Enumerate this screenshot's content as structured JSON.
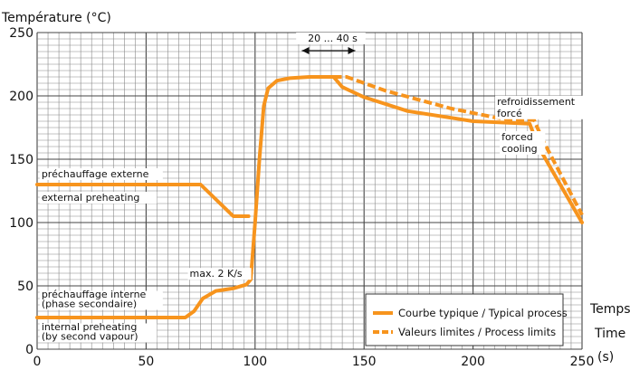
{
  "chart_data": {
    "type": "line",
    "ylabel": "Température (°C)",
    "xlabel_lines": [
      "Temps",
      "Time",
      "(s)"
    ],
    "xlim": [
      0,
      250
    ],
    "ylim": [
      0,
      250
    ],
    "x_ticks": [
      "0",
      "50",
      "100",
      "150",
      "200",
      "250"
    ],
    "y_ticks": [
      "0",
      "50",
      "100",
      "150",
      "200",
      "250"
    ],
    "grid": true,
    "legend_position": "bottom-right",
    "accent_color": "#f7941d",
    "series": [
      {
        "name": "Courbe typique / Typical process",
        "style": "solid",
        "points": [
          [
            0,
            25
          ],
          [
            34,
            25
          ],
          [
            68,
            25
          ],
          [
            72,
            30
          ],
          [
            76,
            40
          ],
          [
            82,
            46
          ],
          [
            90,
            48
          ],
          [
            96,
            51
          ],
          [
            98,
            55
          ],
          [
            100,
            100
          ],
          [
            102,
            150
          ],
          [
            104,
            192
          ],
          [
            106,
            206
          ],
          [
            110,
            212
          ],
          [
            116,
            214
          ],
          [
            125,
            215
          ],
          [
            136,
            215
          ],
          [
            140,
            207
          ],
          [
            150,
            199
          ],
          [
            170,
            188
          ],
          [
            200,
            180
          ],
          [
            226,
            178
          ],
          [
            230,
            160
          ],
          [
            250,
            100
          ]
        ]
      },
      {
        "name": "Valeurs limites / Process limits",
        "style": "dashed",
        "points": [
          [
            136,
            215
          ],
          [
            142,
            215
          ],
          [
            160,
            204
          ],
          [
            190,
            190
          ],
          [
            210,
            183
          ],
          [
            218,
            181
          ],
          [
            228,
            181
          ],
          [
            232,
            165
          ],
          [
            250,
            106
          ]
        ]
      },
      {
        "name": "",
        "style": "solid",
        "points": [
          [
            0,
            130
          ],
          [
            75,
            130
          ],
          [
            90,
            105
          ],
          [
            97,
            105
          ]
        ]
      }
    ],
    "annotations": [
      {
        "lines": [
          "préchauffage externe",
          "external preheating"
        ],
        "x": 2,
        "y": 130
      },
      {
        "lines": [
          "préchauffage interne",
          "(phase secondaire)",
          "internal preheating",
          "(by second vapour)"
        ],
        "x": 2,
        "y": 25
      },
      {
        "lines": [
          "max. 2 K/s"
        ],
        "x": 70,
        "y": 57
      },
      {
        "lines": [
          "20 ... 40 s"
        ],
        "x": 136,
        "y": 240
      },
      {
        "lines": [
          "refroidissement",
          "forcé"
        ],
        "x": 211,
        "y": 193
      },
      {
        "lines": [
          "forced",
          "cooling"
        ],
        "x": 211,
        "y": 165
      }
    ]
  }
}
